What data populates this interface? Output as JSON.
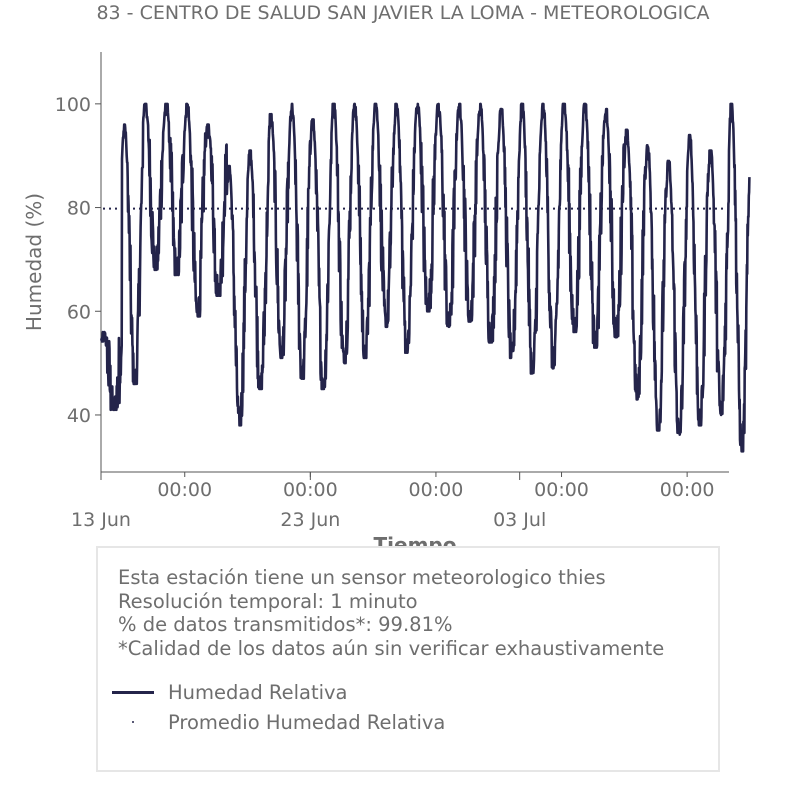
{
  "chart_data": {
    "type": "line",
    "title": "83 - CENTRO DE SALUD SAN JAVIER LA LOMA - METEOROLOGICA",
    "xlabel": "Tiempo",
    "ylabel": "Humedad (%)",
    "x_range": [
      "2024-06-13",
      "2024-07-13"
    ],
    "ylim": [
      29,
      110
    ],
    "yticks": [
      40,
      60,
      80,
      100
    ],
    "x_minor_tick_labels": [
      "00:00",
      "00:00",
      "00:00",
      "00:00",
      "00:00"
    ],
    "x_minor_ticks": [
      "2024-06-17",
      "2024-06-23",
      "2024-06-29",
      "2024-07-05",
      "2024-07-11"
    ],
    "x_major_tick_labels": [
      "13 Jun",
      "23 Jun",
      "03 Jul"
    ],
    "x_major_ticks": [
      "2024-06-13",
      "2024-06-23",
      "2024-07-03"
    ],
    "series": [
      {
        "name": "Humedad Relativa",
        "style": "solid",
        "color": "#24244a",
        "daily_min": [
          41,
          46,
          68,
          67,
          59,
          63,
          38,
          45,
          51,
          47,
          45,
          50,
          51,
          57,
          52,
          60,
          57,
          58,
          54,
          51,
          48,
          49,
          56,
          53,
          55,
          43,
          37,
          36,
          38,
          40,
          33
        ],
        "daily_max": [
          56,
          96,
          100,
          100,
          100,
          96,
          88,
          91,
          98,
          100,
          97,
          100,
          100,
          100,
          100,
          100,
          100,
          100,
          100,
          99,
          100,
          100,
          100,
          100,
          99,
          95,
          92,
          89,
          94,
          91,
          100
        ]
      },
      {
        "name": "Promedio Humedad Relativa",
        "style": "dotted",
        "color": "#24244a",
        "value": 79.8
      }
    ]
  },
  "info": {
    "lines": [
      "Esta estación tiene un sensor meteorologico thies",
      "Resolución temporal: 1 minuto",
      "% de datos transmitidos*: 99.81%",
      "*Calidad de los datos aún sin verificar exhaustivamente"
    ]
  },
  "legend": {
    "line_label": "Humedad Relativa",
    "mean_label": "Promedio Humedad Relativa"
  }
}
